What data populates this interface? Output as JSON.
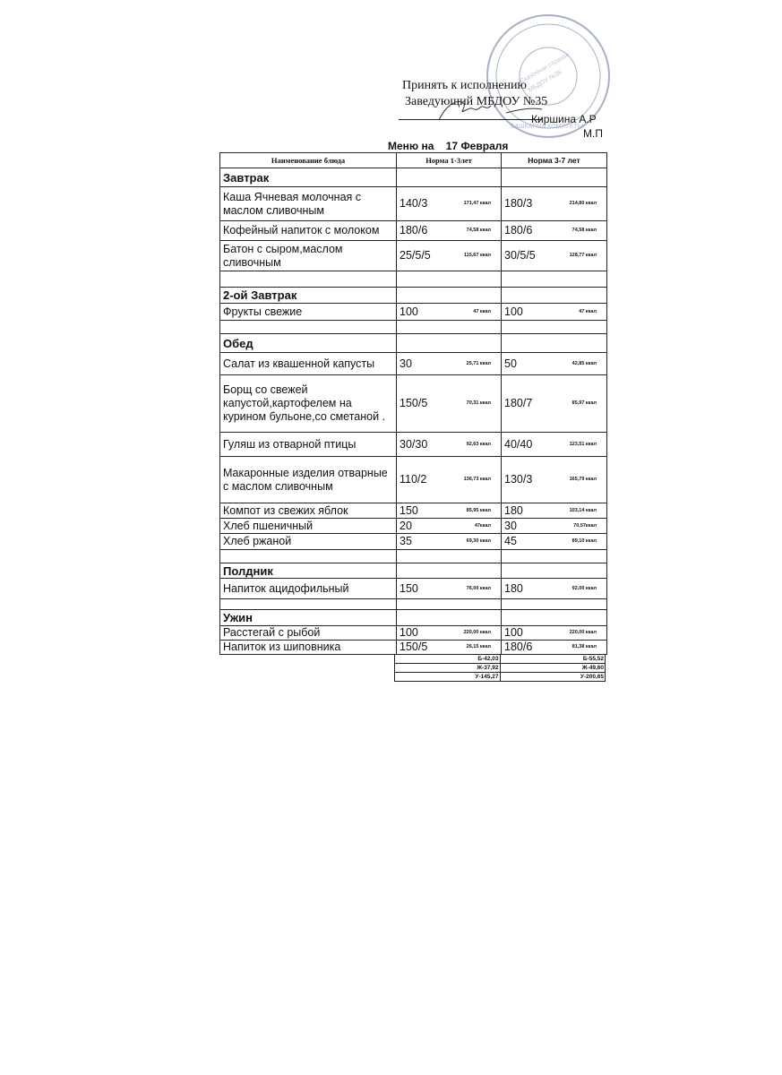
{
  "approval": {
    "line1": "Принять к исполнению",
    "line2": "Заведующий МБДОУ №35",
    "name": "Киршина А.Р",
    "mp": "М.П"
  },
  "title": "Меню на    17 Февраля",
  "headers": [
    "Наименование блюда",
    "Норма 1-3лет",
    "Норма 3-7 лет"
  ],
  "rows": [
    {
      "type": "section",
      "name": "Завтрак"
    },
    {
      "type": "item",
      "name": "Каша Ячневая молочная с маслом сливочным",
      "n1": "140/3",
      "k1": "171,47 ккал",
      "n2": "180/3",
      "k2": "214,80 ккал"
    },
    {
      "type": "item",
      "name": "Кофейный напиток с молоком",
      "n1": "180/6",
      "k1": "74,58 ккал",
      "n2": "180/6",
      "k2": "74,58 ккал"
    },
    {
      "type": "item",
      "name": "Батон с сыром,маслом сливочным",
      "n1": "25/5/5",
      "k1": "115,67 ккал",
      "n2": "30/5/5",
      "k2": "128,77 ккал"
    },
    {
      "type": "empty"
    },
    {
      "type": "section",
      "name": "2-ой Завтрак"
    },
    {
      "type": "item",
      "name": "Фрукты свежие",
      "n1": "100",
      "k1": "47 ккал",
      "n2": "100",
      "k2": "47 ккал"
    },
    {
      "type": "empty"
    },
    {
      "type": "section",
      "name": "Обед"
    },
    {
      "type": "item",
      "name": "Салат из квашенной капусты",
      "n1": "30",
      "k1": "25,71 ккал",
      "n2": "50",
      "k2": "42,85 ккал"
    },
    {
      "type": "item",
      "name": "Борщ со свежей капустой,картофелем на курином бульоне,со сметаной .",
      "n1": "150/5",
      "k1": "70,31 ккал",
      "n2": "180/7",
      "k2": "85,97 ккал"
    },
    {
      "type": "item",
      "name": "Гуляш из отварной птицы",
      "n1": "30/30",
      "k1": "92,63 ккал",
      "n2": "40/40",
      "k2": "123,51 ккал"
    },
    {
      "type": "item",
      "name": "Макаронные изделия отварные с маслом сливочным",
      "n1": "110/2",
      "k1": "136,73 ккал",
      "n2": "130/3",
      "k2": "165,79 ккал"
    },
    {
      "type": "item",
      "name": "Компот из свежих яблок",
      "n1": "150",
      "k1": "85,95 ккал",
      "n2": "180",
      "k2": "103,14 ккал"
    },
    {
      "type": "item",
      "name": "Хлеб пшеничный",
      "n1": "20",
      "k1": "47ккал",
      "n2": "30",
      "k2": "70,57ккал"
    },
    {
      "type": "item",
      "name": "Хлеб ржаной",
      "n1": "35",
      "k1": "69,30 ккал",
      "n2": "45",
      "k2": "89,10 ккал"
    },
    {
      "type": "empty"
    },
    {
      "type": "section",
      "name": "Полдник"
    },
    {
      "type": "item",
      "name": "Напиток ацидофильный",
      "n1": "150",
      "k1": "76,00 ккал",
      "n2": "180",
      "k2": "92,00 ккал"
    },
    {
      "type": "empty"
    },
    {
      "type": "section",
      "name": "Ужин"
    },
    {
      "type": "item",
      "name": "Расстегай с рыбой",
      "n1": "100",
      "k1": "220,00 ккал",
      "n2": "100",
      "k2": "220,00 ккал"
    },
    {
      "type": "item",
      "name": "Напиток из шиповника",
      "n1": "150/5",
      "k1": "26,15 ккал",
      "n2": "180/6",
      "k2": "81,38 ккал"
    }
  ],
  "totals": [
    [
      "Б-42,03",
      "Б-55,52"
    ],
    [
      "Ж-37,92",
      "Ж-49,60"
    ],
    [
      "У-145,27",
      "У-200,65"
    ]
  ],
  "stamp": {
    "text": "МБДОУ «Центр развития ребенка - детский сад №35 «Сказочная страна» Альметьевского муниципального района Республики Татарстан» ОГРН 1091644000282",
    "color": "#8a96b8"
  }
}
